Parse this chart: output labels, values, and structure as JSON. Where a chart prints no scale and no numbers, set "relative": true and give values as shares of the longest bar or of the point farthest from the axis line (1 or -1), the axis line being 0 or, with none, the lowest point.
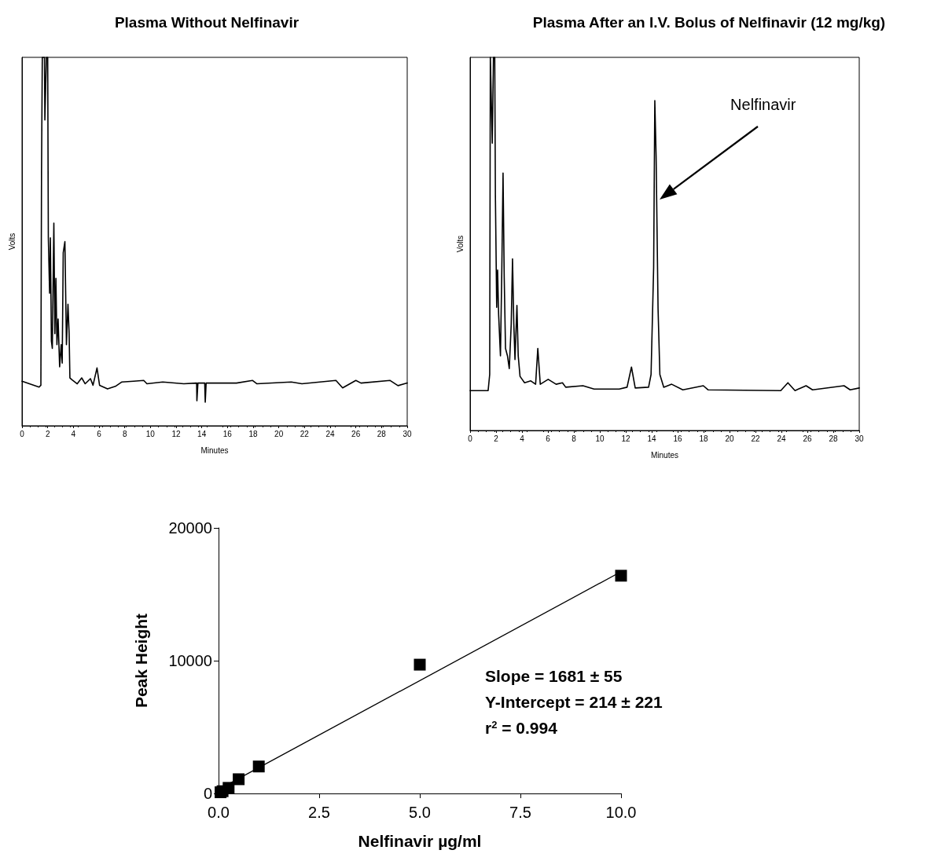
{
  "chart_data": [
    {
      "type": "line",
      "title": "Plasma Without Nelfinavir",
      "xlabel": "Minutes",
      "ylabel": "Volts",
      "relative": true,
      "tick_labels": "x",
      "marker": "none",
      "line_style": "solid",
      "xlim": [
        0,
        30
      ],
      "xticks": [
        0,
        2,
        4,
        6,
        8,
        10,
        12,
        14,
        16,
        18,
        20,
        22,
        24,
        26,
        28,
        30
      ],
      "series": [
        {
          "color": "#000000",
          "x": [
            0,
            1.33,
            1.47,
            1.52,
            1.58,
            1.75,
            1.78,
            1.9,
            2.0,
            2.05,
            2.15,
            2.21,
            2.29,
            2.36,
            2.48,
            2.56,
            2.64,
            2.72,
            2.81,
            2.93,
            3.05,
            3.13,
            3.21,
            3.34,
            3.46,
            3.58,
            3.67,
            3.73,
            3.89,
            4.3,
            4.65,
            4.92,
            5.33,
            5.53,
            5.84,
            6.04,
            6.66,
            7.27,
            7.78,
            8.7,
            9.48,
            9.73,
            10.96,
            12.6,
            13.6,
            13.62,
            13.66,
            13.7,
            13.76,
            14.23,
            14.27,
            14.3,
            14.34,
            14.4,
            16.7,
            17.96,
            18.3,
            20.97,
            21.8,
            24.45,
            24.97,
            26.0,
            26.4,
            28.67,
            29.28,
            30
          ],
          "values": [
            0.121,
            0.105,
            0.11,
            0.69,
            1.0,
            1.0,
            0.83,
            1.0,
            1.0,
            0.51,
            0.36,
            0.51,
            0.23,
            0.21,
            0.55,
            0.25,
            0.4,
            0.22,
            0.29,
            0.16,
            0.22,
            0.17,
            0.47,
            0.5,
            0.22,
            0.33,
            0.25,
            0.13,
            0.125,
            0.114,
            0.13,
            0.114,
            0.128,
            0.11,
            0.157,
            0.11,
            0.1,
            0.107,
            0.119,
            0.121,
            0.123,
            0.114,
            0.119,
            0.114,
            0.116,
            0.068,
            0.068,
            0.116,
            0.116,
            0.116,
            0.064,
            0.064,
            0.116,
            0.116,
            0.116,
            0.123,
            0.114,
            0.119,
            0.114,
            0.123,
            0.103,
            0.123,
            0.116,
            0.123,
            0.109,
            0.116
          ]
        }
      ]
    },
    {
      "type": "line",
      "title": "Plasma After an I.V. Bolus of Nelfinavir (12 mg/kg)",
      "xlabel": "Minutes",
      "ylabel": "Volts",
      "relative": true,
      "tick_labels": "x",
      "marker": "none",
      "line_style": "solid",
      "xlim": [
        0,
        30
      ],
      "xticks": [
        0,
        2,
        4,
        6,
        8,
        10,
        12,
        14,
        16,
        18,
        20,
        22,
        24,
        26,
        28,
        30
      ],
      "annotations": [
        "Nelfinavir"
      ],
      "series": [
        {
          "color": "#000000",
          "x": [
            0,
            1.39,
            1.51,
            1.56,
            1.71,
            1.8,
            1.9,
            1.95,
            2.05,
            2.12,
            2.2,
            2.34,
            2.44,
            2.54,
            2.63,
            2.73,
            2.88,
            3.02,
            3.17,
            3.27,
            3.37,
            3.46,
            3.61,
            3.71,
            3.85,
            4.2,
            4.68,
            5.05,
            5.22,
            5.41,
            6.02,
            6.63,
            7.12,
            7.37,
            8.7,
            9.56,
            11.5,
            12.1,
            12.44,
            12.73,
            13.76,
            13.95,
            14.15,
            14.24,
            14.34,
            14.49,
            14.63,
            14.93,
            15.54,
            16.4,
            17.98,
            18.34,
            23.95,
            24.5,
            25.05,
            25.9,
            26.4,
            28.83,
            29.3,
            30
          ],
          "values": [
            0.107,
            0.107,
            0.15,
            1.0,
            0.77,
            1.0,
            1.0,
            0.63,
            0.33,
            0.43,
            0.31,
            0.2,
            0.42,
            0.69,
            0.41,
            0.22,
            0.2,
            0.166,
            0.285,
            0.46,
            0.285,
            0.19,
            0.335,
            0.2,
            0.145,
            0.128,
            0.133,
            0.124,
            0.22,
            0.124,
            0.137,
            0.124,
            0.128,
            0.116,
            0.12,
            0.111,
            0.111,
            0.116,
            0.17,
            0.114,
            0.116,
            0.15,
            0.437,
            0.884,
            0.736,
            0.327,
            0.15,
            0.116,
            0.124,
            0.109,
            0.12,
            0.109,
            0.107,
            0.128,
            0.107,
            0.12,
            0.109,
            0.12,
            0.109,
            0.114
          ]
        }
      ]
    },
    {
      "type": "scatter",
      "xlabel": "Nelfinavir µg/ml",
      "ylabel": "Peak Height",
      "marker": "square",
      "xlim": [
        0,
        10
      ],
      "xticks": [
        {
          "value": 0,
          "label": "0.0"
        },
        2.5,
        {
          "value": 5,
          "label": "5.0"
        },
        7.5,
        {
          "value": 10,
          "label": "10.0"
        }
      ],
      "ylim": [
        0,
        20000
      ],
      "yticks": [
        0,
        10000,
        20000
      ],
      "annotations": [
        "Slope = 1681 ± 55",
        "Y-Intercept = 214 ± 221",
        "r$^{2}$ = 0.994"
      ],
      "series": [
        {
          "color": "#000000",
          "x": [
            0.05,
            0.1,
            0.25,
            0.5,
            1,
            5,
            10
          ],
          "values": [
            90,
            170,
            420,
            1070,
            2030,
            9700,
            16400
          ]
        },
        {
          "type": "line",
          "marker": "none",
          "line_style": "solid",
          "color": "#000000",
          "x": [
            0,
            10
          ],
          "values": [
            300,
            16700
          ]
        }
      ]
    }
  ]
}
